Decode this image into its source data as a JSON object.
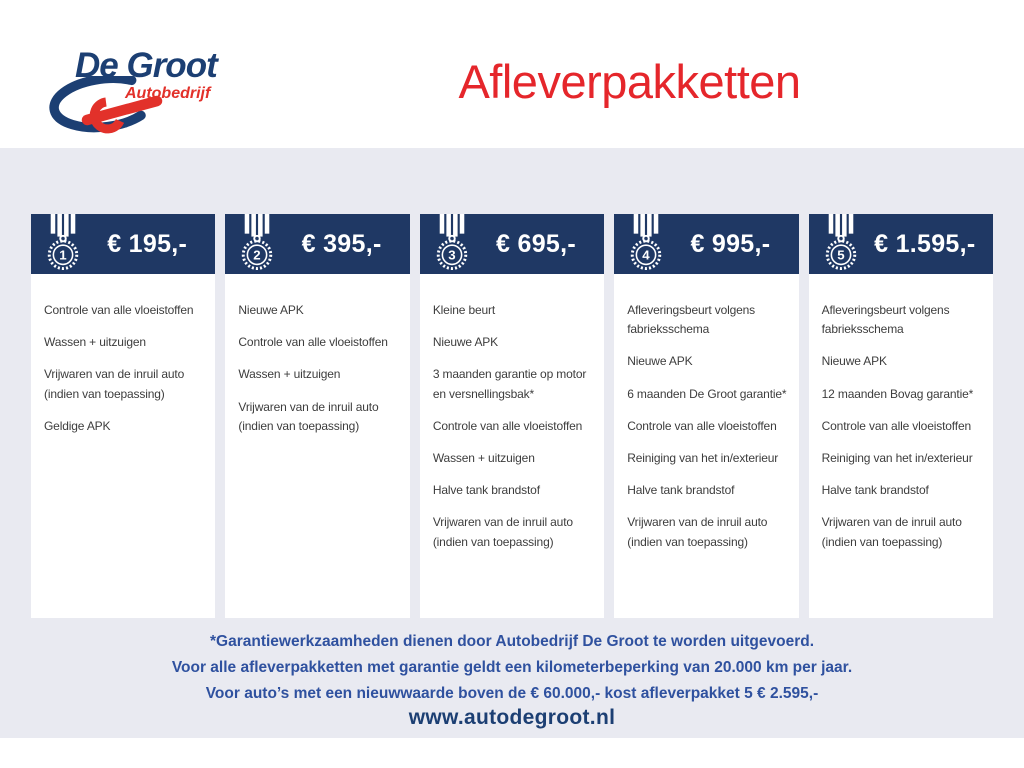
{
  "header": {
    "title": "Afleverpakketten"
  },
  "logo": {
    "name": "De Groot",
    "subtitle": "Autobedrijf"
  },
  "packages": [
    {
      "number": "1",
      "price": "€ 195,-",
      "items": [
        "Controle van alle vloeistoffen",
        "Wassen + uitzuigen",
        "Vrijwaren van de inruil auto (indien van toepassing)",
        "Geldige APK"
      ]
    },
    {
      "number": "2",
      "price": "€ 395,-",
      "items": [
        "Nieuwe APK",
        "Controle van alle vloeistoffen",
        "Wassen + uitzuigen",
        "Vrijwaren van de inruil auto (indien van toepassing)"
      ]
    },
    {
      "number": "3",
      "price": "€ 695,-",
      "items": [
        "Kleine beurt",
        "Nieuwe APK",
        "3 maanden garantie op motor en versnellingsbak*",
        "Controle van alle vloeistoffen",
        "Wassen + uitzuigen",
        "Halve tank brandstof",
        "Vrijwaren van de inruil auto (indien van toepassing)"
      ]
    },
    {
      "number": "4",
      "price": "€ 995,-",
      "items": [
        "Afleveringsbeurt volgens fabrieksschema",
        "Nieuwe APK",
        "6 maanden De Groot garantie*",
        "Controle van alle vloeistoffen",
        "Reiniging van het in/exterieur",
        "Halve tank brandstof",
        "Vrijwaren van de inruil auto (indien van toepassing)"
      ]
    },
    {
      "number": "5",
      "price": "€ 1.595,-",
      "items": [
        "Afleveringsbeurt volgens fabrieksschema",
        "Nieuwe APK",
        "12 maanden Bovag garantie*",
        "Controle van alle vloeistoffen",
        "Reiniging van het in/exterieur",
        "Halve tank brandstof",
        "Vrijwaren van de inruil auto (indien van toepassing)"
      ]
    }
  ],
  "footnotes": [
    "*Garantiewerkzaamheden dienen door Autobedrijf De Groot te worden uitgevoerd.",
    "Voor alle afleverpakketten met garantie geldt een kilometerbeperking van 20.000 km per jaar.",
    "Voor auto’s met een nieuwwaarde boven de € 60.000,- kost afleverpakket 5 € 2.595,-"
  ],
  "footer": {
    "website": "www.autodegroot.nl"
  },
  "colors": {
    "navy": "#1f3864",
    "red": "#e5262b",
    "background": "#e9eaf1",
    "footnote_blue": "#2f519f",
    "item_text": "#3d3d3d",
    "logo_navy": "#1c3f73",
    "logo_red": "#e2312a"
  }
}
